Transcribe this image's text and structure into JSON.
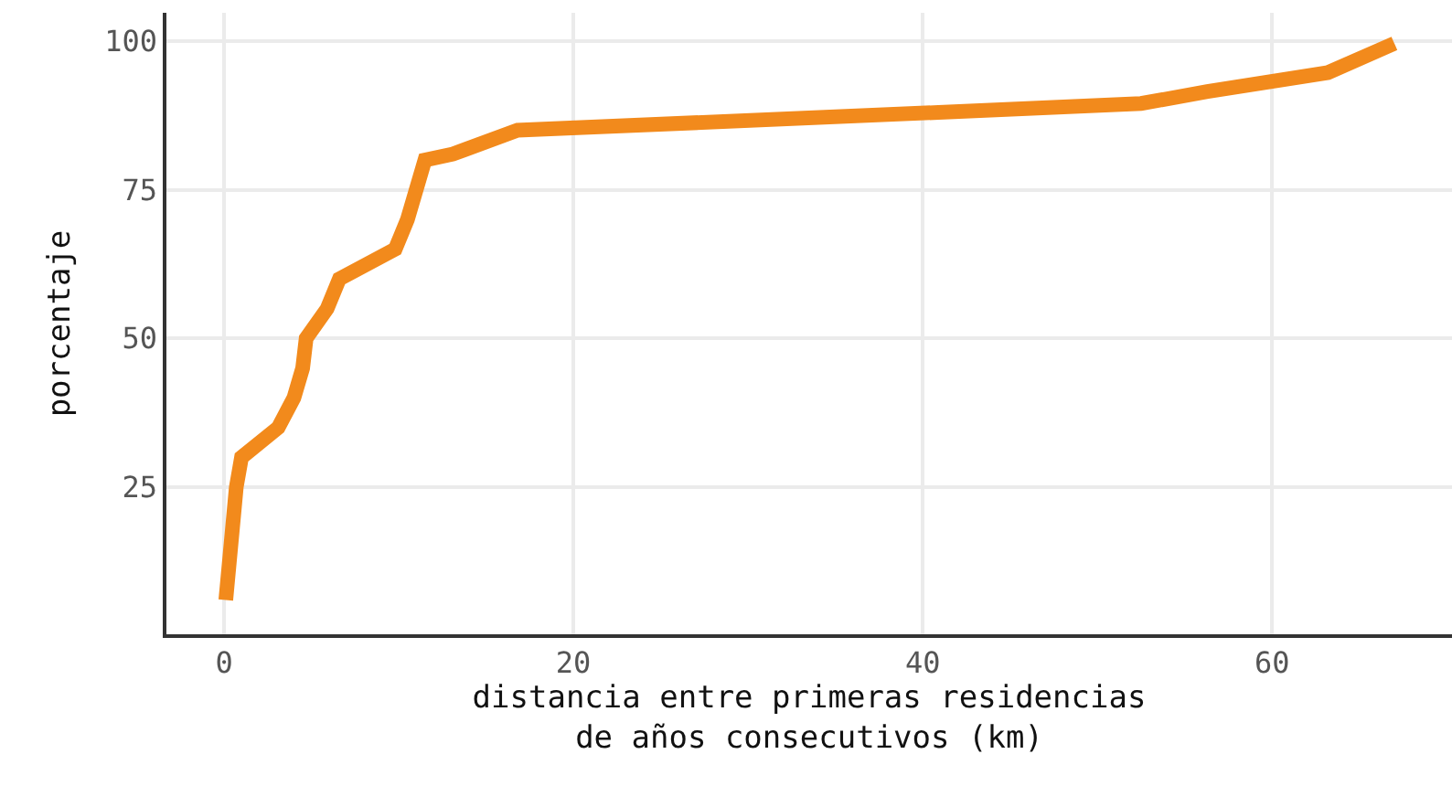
{
  "chart_data": {
    "type": "line",
    "xlabel": "distancia entre primeras residencias\nde años consecutivos (km)",
    "ylabel": "porcentaje",
    "x": [
      0.1,
      0.7,
      1,
      3.1,
      4,
      4.5,
      4.7,
      5.9,
      6.6,
      9.8,
      10.5,
      11.5,
      13.1,
      16.8,
      40.9,
      52.5,
      56.3,
      63.2,
      67
    ],
    "series": [
      {
        "color": "#f28a1c",
        "values": [
          6,
          25,
          30,
          35,
          40,
          45,
          50,
          55,
          60,
          65,
          70,
          80,
          81,
          85,
          88,
          89.5,
          91.5,
          94.7,
          99.6
        ]
      }
    ],
    "xlim": [
      -3.3,
      70.3
    ],
    "ylim": [
      0.25,
      104.75
    ],
    "xticks": [
      0,
      20,
      40,
      60
    ],
    "yticks": [
      25,
      50,
      75,
      100
    ],
    "grid": true,
    "marker": "none",
    "line_style": "solid"
  }
}
